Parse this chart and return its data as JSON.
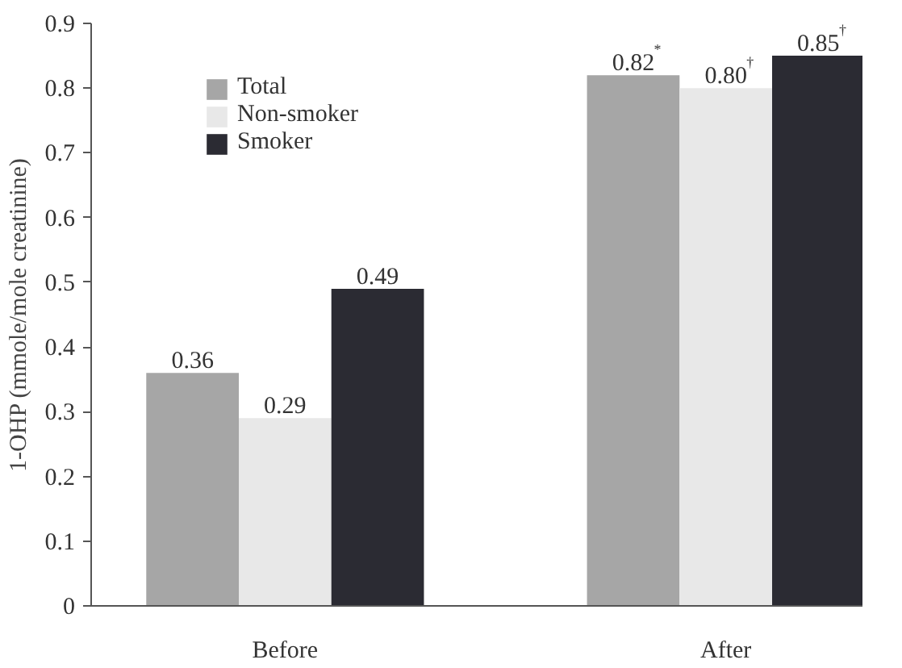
{
  "chart_data": {
    "type": "bar",
    "ylabel": "1-OHP (mmole/mole creatinine)",
    "categories": [
      "Before",
      "After"
    ],
    "series": [
      {
        "name": "Total",
        "color": "#a6a6a6",
        "values": [
          0.36,
          0.82
        ],
        "value_labels": [
          "0.36",
          "0.82$^{*}$"
        ]
      },
      {
        "name": "Non-smoker",
        "color": "#e8e8e8",
        "values": [
          0.29,
          0.8
        ],
        "value_labels": [
          "0.29",
          "0.80$^{†}$"
        ]
      },
      {
        "name": "Smoker",
        "color": "#2b2b33",
        "values": [
          0.49,
          0.85
        ],
        "value_labels": [
          "0.49",
          "0.85$^{†}$"
        ]
      }
    ],
    "ylim": [
      0,
      0.9
    ],
    "yticks": [
      0,
      0.1,
      0.2,
      0.3,
      0.4,
      0.5,
      0.6,
      0.7,
      0.8,
      0.9
    ],
    "grid": false,
    "legend": "top left"
  }
}
